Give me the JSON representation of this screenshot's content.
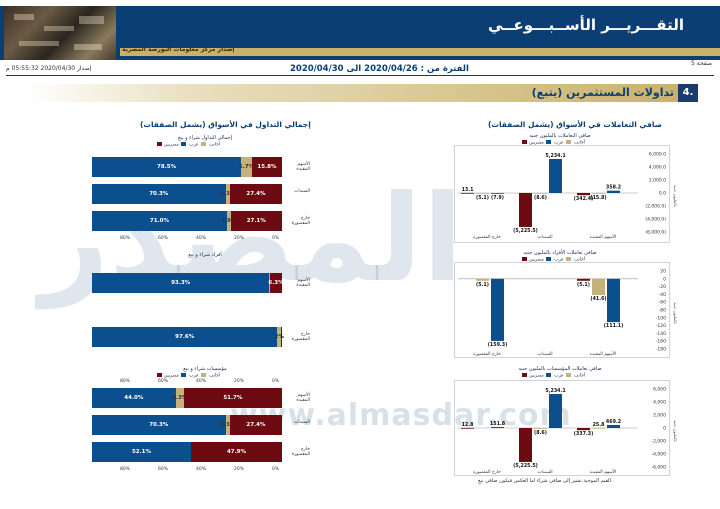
{
  "header": {
    "title": "التقـــريـــر الأســبـــوعــي",
    "subtitle": "إصدار مركز معلومات البورصة المصرية",
    "page_label": "صفحة 5",
    "period": "الفترة من : 2020/04/26 الى 2020/04/30",
    "issued": "إصدار 2020/04/30 05:55:32 م"
  },
  "section": {
    "number": "4.",
    "title": "تداولات المستثمرين (يتبع)"
  },
  "watermark": {
    "brand": "المصدر",
    "url": "www.almasdar.com"
  },
  "left": {
    "heading": "إجمالي التداول في الأسواق (يشمل الصفقات)",
    "top_chart": {
      "title": "إجمالي التداول شراء و بيع",
      "legend": [
        "مصريين",
        "عرب",
        "أجانب"
      ],
      "rows": [
        {
          "label": "الأسهم المقيدة",
          "values": [
            78.5,
            5.7,
            15.8
          ],
          "labels": [
            "78.5%",
            "5.7%",
            "15.8%"
          ]
        },
        {
          "label": "السندات",
          "values": [
            70.3,
            2.3,
            27.4
          ],
          "labels": [
            "70.3%",
            "2.3%",
            "27.4%"
          ]
        },
        {
          "label": "خارج المقصورة",
          "values": [
            71.0,
            1.9,
            27.1
          ],
          "labels": [
            "71.0%",
            "1.9%",
            "27.1%"
          ]
        }
      ],
      "ticks": [
        "0%",
        "20%",
        "40%",
        "60%",
        "80%"
      ]
    },
    "middle_chart": {
      "title": "أفراد شراء و بيع",
      "rows": [
        {
          "label": "الأسهم المقيدة",
          "values": [
            93.3,
            0.4,
            6.3
          ],
          "labels": [
            "93.3%",
            "",
            "6.3%"
          ]
        },
        {
          "label": "خارج المقصورة",
          "values": [
            97.6,
            2.0,
            0.4
          ],
          "labels": [
            "97.6%",
            "2%",
            ""
          ]
        }
      ],
      "ticks": [
        "0%",
        "20%",
        "40%",
        "60%",
        "80%"
      ]
    },
    "bottom_chart": {
      "title": "مؤسسات شراء و بيع",
      "legend": [
        "مصريين",
        "عرب",
        "أجانب"
      ],
      "rows": [
        {
          "label": "الأسهم المقيدة",
          "values": [
            44.0,
            4.3,
            51.7
          ],
          "labels": [
            "44.0%",
            "4.3%",
            "51.7%"
          ]
        },
        {
          "label": "السندات",
          "values": [
            70.3,
            2.3,
            27.4
          ],
          "labels": [
            "70.3%",
            "2.3%",
            "27.4%"
          ]
        },
        {
          "label": "خارج المقصورة",
          "values": [
            52.1,
            0.0,
            47.9
          ],
          "labels": [
            "52.1%",
            "",
            "47.9%"
          ]
        }
      ],
      "ticks": [
        "0%",
        "20%",
        "40%",
        "60%",
        "80%"
      ]
    }
  },
  "right": {
    "heading": "صافي التعاملات في الأسواق (يشمل الصفقات)",
    "note": "القيم الموجبة تشير إلى صافي شراء اما العكس فيكون صافي بيع.",
    "axis_label": "بالمليون جنيه",
    "groups": [
      "الأسهم المقيدة",
      "السندات",
      "خارج المقصورة"
    ],
    "legend": [
      "مصريين",
      "عرب",
      "أجانب"
    ],
    "charts": [
      {
        "title": "صافي التعاملات بالمليون جنيه",
        "ylim": [
          -6000,
          6000
        ],
        "ticks": [
          "6,000.0",
          "4,000.0",
          "2,000.0",
          "0.0",
          "(2,000.0)",
          "(4,000.0)",
          "(6,000.0)"
        ],
        "tick_values": [
          6000,
          4000,
          2000,
          0,
          -2000,
          -4000,
          -6000
        ],
        "bars": [
          {
            "value": 358.2,
            "label": "358.2",
            "color": "#0c4f8f"
          },
          {
            "value": -15.8,
            "label": "(15.8)",
            "color": "#c4b27a"
          },
          {
            "value": -342.4,
            "label": "(342.4)",
            "color": "#6e0b12"
          },
          {
            "value": 5234.1,
            "label": "5,234.1",
            "color": "#0c4f8f"
          },
          {
            "value": -8.6,
            "label": "(8.6)",
            "color": "#c4b27a"
          },
          {
            "value": -5225.5,
            "label": "(5,225.5)",
            "color": "#6e0b12"
          },
          {
            "value": -7.9,
            "label": "(7.9)",
            "color": "#0c4f8f"
          },
          {
            "value": -5.1,
            "label": "(5.1)",
            "color": "#c4b27a"
          },
          {
            "value": 13.1,
            "label": "13.1",
            "color": "#6e0b12"
          }
        ]
      },
      {
        "title": "صافي تعاملات الأفراد بالمليون جنيه",
        "ylim": [
          -180,
          20
        ],
        "ticks": [
          "20",
          "0",
          "-20",
          "-40",
          "-60",
          "-80",
          "-100",
          "-120",
          "-140",
          "-160",
          "-180"
        ],
        "tick_values": [
          20,
          0,
          -20,
          -40,
          -60,
          -80,
          -100,
          -120,
          -140,
          -160,
          -180
        ],
        "bars": [
          {
            "value": -111.1,
            "label": "(111.1)",
            "color": "#0c4f8f"
          },
          {
            "value": -41.6,
            "label": "(41.6)",
            "color": "#c4b27a"
          },
          {
            "value": -5.1,
            "label": "(5.1)",
            "color": "#6e0b12"
          },
          {
            "value": 0,
            "label": "",
            "color": "#0c4f8f"
          },
          {
            "value": 0,
            "label": "",
            "color": "#c4b27a"
          },
          {
            "value": 0,
            "label": "",
            "color": "#6e0b12"
          },
          {
            "value": -159.3,
            "label": "(159.3)",
            "color": "#0c4f8f"
          },
          {
            "value": -5.1,
            "label": "(5.1)",
            "color": "#c4b27a"
          },
          {
            "value": 0,
            "label": "",
            "color": "#6e0b12"
          }
        ]
      },
      {
        "title": "صافي تعاملات المؤسسات بالمليون جنيه",
        "ylim": [
          -6000,
          6000
        ],
        "ticks": [
          "6,000",
          "4,000",
          "2,000",
          "0",
          "-2,000",
          "-4,000",
          "-6,000"
        ],
        "tick_values": [
          6000,
          4000,
          2000,
          0,
          -2000,
          -4000,
          -6000
        ],
        "bars": [
          {
            "value": 469.2,
            "label": "469.2",
            "color": "#0c4f8f"
          },
          {
            "value": 25.8,
            "label": "25.8",
            "color": "#c4b27a"
          },
          {
            "value": -337.3,
            "label": "(337.3)",
            "color": "#6e0b12"
          },
          {
            "value": 5234.1,
            "label": "5,234.1",
            "color": "#0c4f8f"
          },
          {
            "value": -8.6,
            "label": "(8.6)",
            "color": "#c4b27a"
          },
          {
            "value": -5225.5,
            "label": "(5,225.5)",
            "color": "#6e0b12"
          },
          {
            "value": 151.8,
            "label": "151.8",
            "color": "#0c4f8f"
          },
          {
            "value": 0,
            "label": "",
            "color": "#c4b27a"
          },
          {
            "value": 12.8,
            "label": "12.8",
            "color": "#6e0b12"
          }
        ]
      }
    ]
  },
  "chart_data": [
    {
      "type": "bar",
      "title": "إجمالي التداول شراء و بيع",
      "categories": [
        "الأسهم المقيدة",
        "السندات",
        "خارج المقصورة"
      ],
      "series": [
        {
          "name": "مصريين",
          "values": [
            78.5,
            70.3,
            71.0
          ]
        },
        {
          "name": "عرب",
          "values": [
            5.7,
            2.3,
            1.9
          ]
        },
        {
          "name": "أجانب",
          "values": [
            15.8,
            27.4,
            27.1
          ]
        }
      ]
    },
    {
      "type": "bar",
      "title": "أفراد شراء و بيع",
      "categories": [
        "الأسهم المقيدة",
        "خارج المقصورة"
      ],
      "series": [
        {
          "name": "مصريين",
          "values": [
            93.3,
            97.6
          ]
        }
      ]
    },
    {
      "type": "bar",
      "title": "مؤسسات شراء و بيع",
      "categories": [
        "الأسهم المقيدة",
        "السندات",
        "خارج المقصورة"
      ],
      "series": [
        {
          "name": "مصريين",
          "values": [
            44.0,
            70.3,
            52.1
          ]
        },
        {
          "name": "عرب",
          "values": [
            4.3,
            2.3,
            0
          ]
        },
        {
          "name": "أجانب",
          "values": [
            51.7,
            27.4,
            47.9
          ]
        }
      ]
    },
    {
      "type": "bar",
      "title": "صافي التعاملات بالمليون جنيه",
      "categories": [
        "الأسهم المقيدة",
        "السندات",
        "خارج المقصورة"
      ],
      "series": [
        {
          "name": "مصريين",
          "values": [
            358.2,
            5234.1,
            -7.9
          ]
        },
        {
          "name": "عرب",
          "values": [
            -15.8,
            -8.6,
            -5.1
          ]
        },
        {
          "name": "أجانب",
          "values": [
            -342.4,
            -5225.5,
            13.1
          ]
        }
      ]
    },
    {
      "type": "bar",
      "title": "صافي تعاملات الأفراد بالمليون جنيه",
      "categories": [
        "الأسهم المقيدة",
        "السندات",
        "خارج المقصورة"
      ],
      "series": [
        {
          "name": "مصريين",
          "values": [
            -111.1,
            0,
            -159.3
          ]
        },
        {
          "name": "عرب",
          "values": [
            -41.6,
            0,
            -5.1
          ]
        },
        {
          "name": "أجانب",
          "values": [
            -5.1,
            0,
            0
          ]
        }
      ]
    },
    {
      "type": "bar",
      "title": "صافي تعاملات المؤسسات بالمليون جنيه",
      "categories": [
        "الأسهم المقيدة",
        "السندات",
        "خارج المقصورة"
      ],
      "series": [
        {
          "name": "مصريين",
          "values": [
            469.2,
            5234.1,
            151.8
          ]
        },
        {
          "name": "عرب",
          "values": [
            25.8,
            -8.6,
            0
          ]
        },
        {
          "name": "أجانب",
          "values": [
            -337.3,
            -5225.5,
            12.8
          ]
        }
      ]
    }
  ]
}
